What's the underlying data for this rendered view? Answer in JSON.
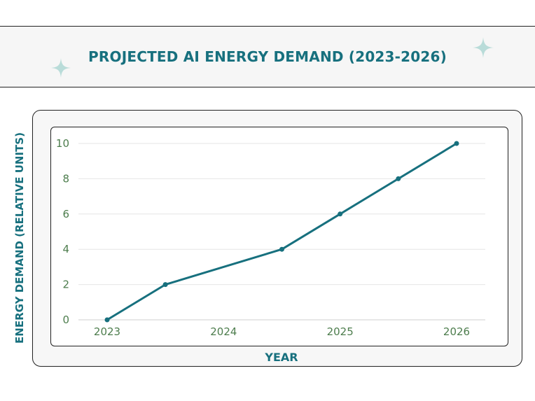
{
  "colors": {
    "accent": "#17707e",
    "line": "#17707e",
    "tick_text": "#4d7d4d",
    "sparkle": "#b9dcd9",
    "grid": "#e6e6e6"
  },
  "icons": [
    "sparkle-icon",
    "sparkle-icon"
  ],
  "chart_data": {
    "type": "line",
    "title": "PROJECTED AI ENERGY DEMAND (2023-2026)",
    "xlabel": "YEAR",
    "ylabel": "ENERGY DEMAND (RELATIVE UNITS)",
    "x": [
      2023,
      2023.5,
      2024.5,
      2025,
      2025.5,
      2026
    ],
    "values": [
      0,
      2,
      4,
      6,
      8,
      10
    ],
    "xlim": [
      2023,
      2026
    ],
    "ylim": [
      0,
      10
    ],
    "x_ticks": [
      "2023",
      "2024",
      "2025",
      "2026"
    ],
    "y_ticks": [
      "0",
      "2",
      "4",
      "6",
      "8",
      "10"
    ],
    "grid": "horizontal",
    "legend": "none"
  }
}
